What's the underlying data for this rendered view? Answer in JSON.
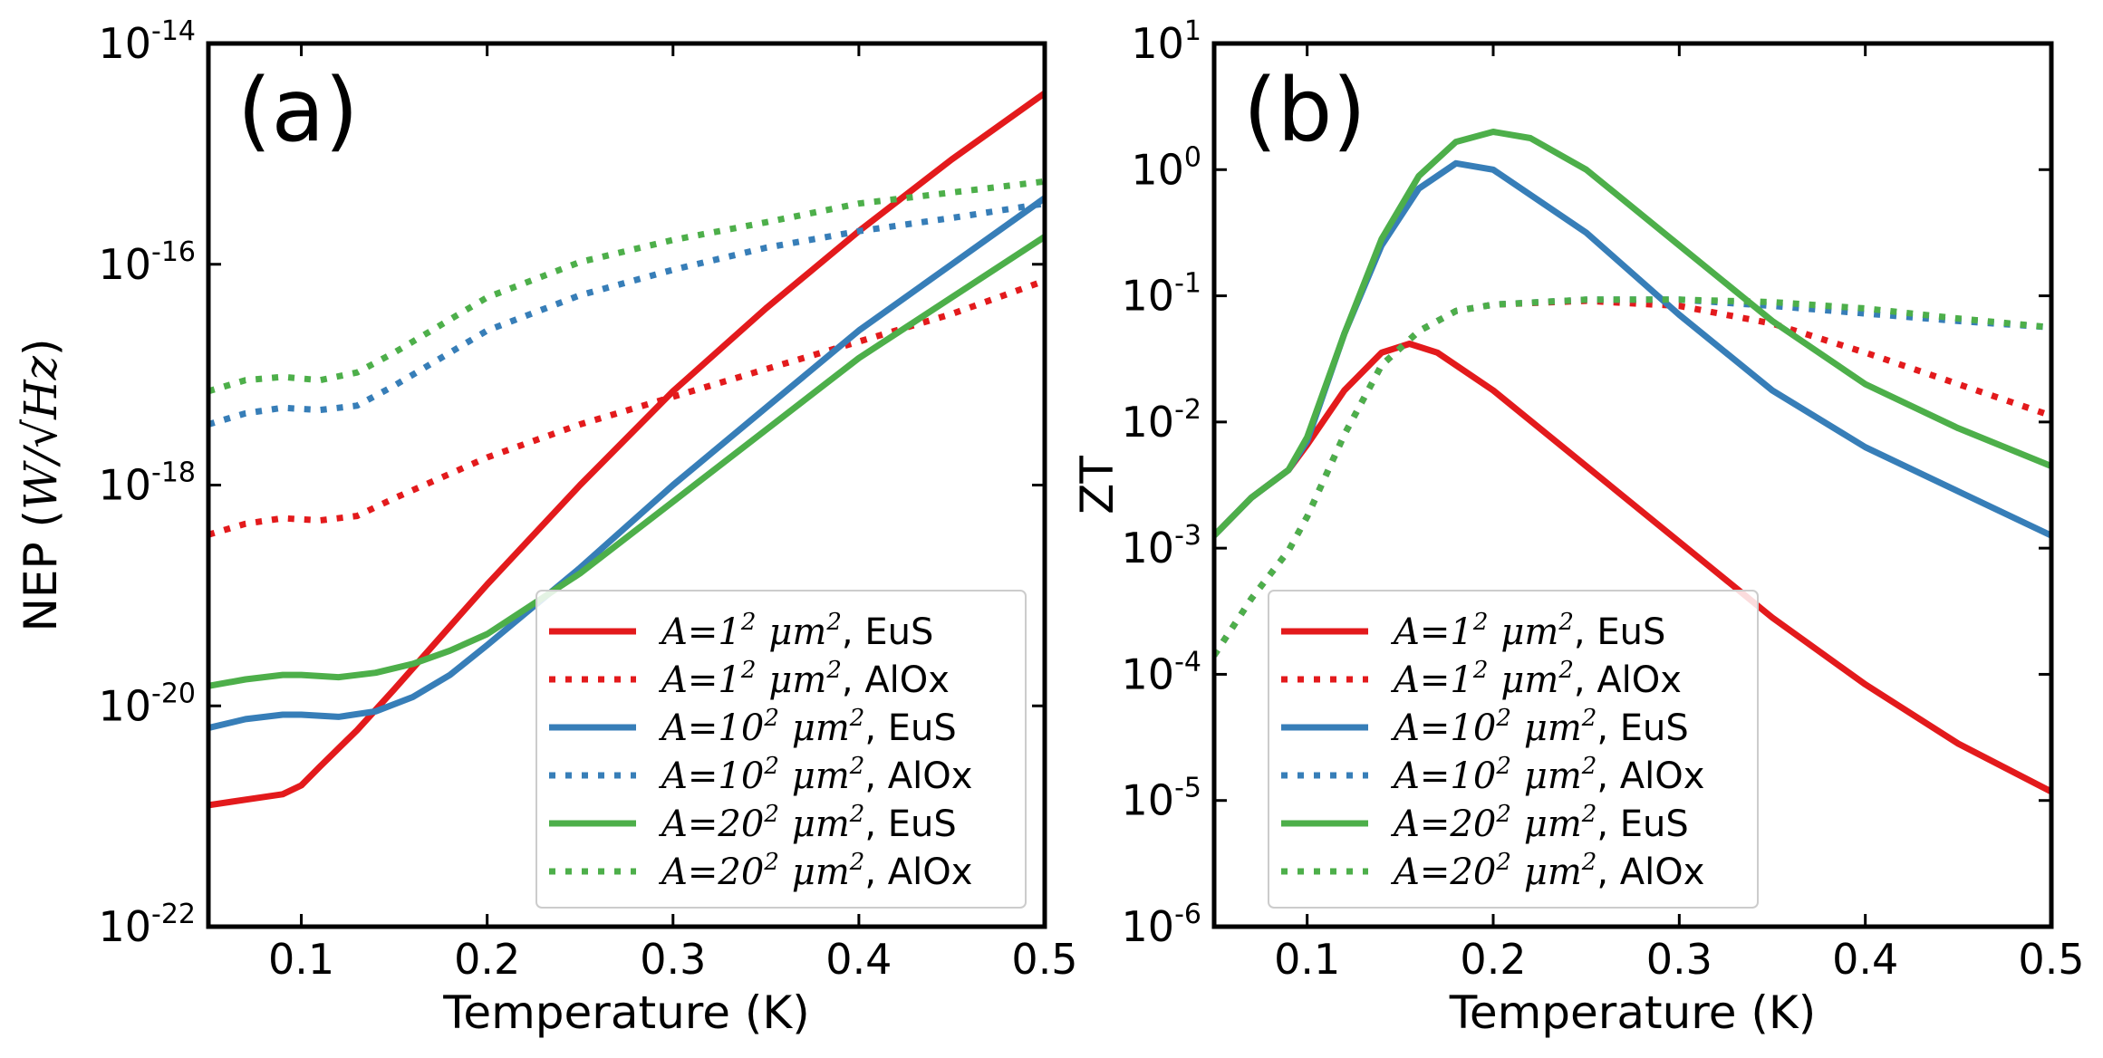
{
  "chart_data": [
    {
      "panel": "(a)",
      "type": "line",
      "xlabel": "Temperature (K)",
      "ylabel_text": "NEP (",
      "ylabel_math": "W/√Hz",
      "ylabel_close": ")",
      "yscale": "log",
      "xlim": [
        0.05,
        0.5
      ],
      "ylim_exp": [
        -22,
        -14
      ],
      "x_ticks": [
        "0.1",
        "0.2",
        "0.3",
        "0.4",
        "0.5"
      ],
      "y_tick_exps": [
        "-22",
        "-20",
        "-18",
        "-16",
        "-14"
      ],
      "y_tick_base": "10",
      "legend_location": "lower-right",
      "series": [
        {
          "name": "A=1² μm², EuS",
          "color": "#e31a1c",
          "style": "solid",
          "x": [
            0.05,
            0.07,
            0.09,
            0.1,
            0.11,
            0.13,
            0.15,
            0.18,
            0.2,
            0.25,
            0.3,
            0.35,
            0.4,
            0.45,
            0.5
          ],
          "log10y": [
            -20.9,
            -20.85,
            -20.8,
            -20.72,
            -20.55,
            -20.22,
            -19.85,
            -19.28,
            -18.9,
            -18.0,
            -17.15,
            -16.4,
            -15.7,
            -15.05,
            -14.45
          ]
        },
        {
          "name": "A=1² μm², AlOx",
          "color": "#e31a1c",
          "style": "dotted",
          "x": [
            0.05,
            0.07,
            0.09,
            0.11,
            0.13,
            0.15,
            0.2,
            0.25,
            0.3,
            0.35,
            0.4,
            0.45,
            0.5
          ],
          "log10y": [
            -18.45,
            -18.35,
            -18.3,
            -18.32,
            -18.28,
            -18.12,
            -17.75,
            -17.45,
            -17.2,
            -16.95,
            -16.7,
            -16.45,
            -16.15
          ]
        },
        {
          "name": "A=10² μm², EuS",
          "color": "#377eb8",
          "style": "solid",
          "x": [
            0.05,
            0.07,
            0.09,
            0.1,
            0.12,
            0.14,
            0.16,
            0.18,
            0.2,
            0.25,
            0.3,
            0.35,
            0.4,
            0.45,
            0.5
          ],
          "log10y": [
            -20.2,
            -20.12,
            -20.08,
            -20.08,
            -20.1,
            -20.05,
            -19.92,
            -19.72,
            -19.45,
            -18.75,
            -18.0,
            -17.3,
            -16.6,
            -16.0,
            -15.4
          ]
        },
        {
          "name": "A=10² μm², AlOx",
          "color": "#377eb8",
          "style": "dotted",
          "x": [
            0.05,
            0.07,
            0.09,
            0.11,
            0.13,
            0.15,
            0.2,
            0.25,
            0.3,
            0.35,
            0.4,
            0.45,
            0.5
          ],
          "log10y": [
            -17.45,
            -17.35,
            -17.3,
            -17.32,
            -17.28,
            -17.1,
            -16.6,
            -16.28,
            -16.05,
            -15.85,
            -15.7,
            -15.58,
            -15.45
          ]
        },
        {
          "name": "A=20² μm², EuS",
          "color": "#4daf4a",
          "style": "solid",
          "x": [
            0.05,
            0.07,
            0.09,
            0.1,
            0.12,
            0.14,
            0.16,
            0.18,
            0.2,
            0.25,
            0.3,
            0.35,
            0.4,
            0.45,
            0.5
          ],
          "log10y": [
            -19.82,
            -19.76,
            -19.72,
            -19.72,
            -19.74,
            -19.7,
            -19.62,
            -19.5,
            -19.35,
            -18.8,
            -18.15,
            -17.5,
            -16.85,
            -16.3,
            -15.75
          ]
        },
        {
          "name": "A=20² μm², AlOx",
          "color": "#4daf4a",
          "style": "dotted",
          "x": [
            0.05,
            0.07,
            0.09,
            0.11,
            0.13,
            0.15,
            0.2,
            0.25,
            0.3,
            0.35,
            0.4,
            0.45,
            0.5
          ],
          "log10y": [
            -17.15,
            -17.05,
            -17.02,
            -17.05,
            -16.98,
            -16.8,
            -16.3,
            -15.98,
            -15.78,
            -15.62,
            -15.45,
            -15.35,
            -15.25
          ]
        }
      ]
    },
    {
      "panel": "(b)",
      "type": "line",
      "xlabel": "Temperature (K)",
      "ylabel_text": "ZT",
      "yscale": "log",
      "xlim": [
        0.05,
        0.5
      ],
      "ylim_exp": [
        -6,
        1
      ],
      "x_ticks": [
        "0.1",
        "0.2",
        "0.3",
        "0.4",
        "0.5"
      ],
      "y_tick_exps": [
        "-6",
        "-5",
        "-4",
        "-3",
        "-2",
        "-1",
        "0",
        "1"
      ],
      "y_tick_base": "10",
      "legend_location": "lower-left",
      "series": [
        {
          "name": "A=1² μm², EuS",
          "color": "#e31a1c",
          "style": "solid",
          "x": [
            0.05,
            0.07,
            0.09,
            0.1,
            0.12,
            0.14,
            0.155,
            0.17,
            0.2,
            0.25,
            0.3,
            0.35,
            0.4,
            0.45,
            0.5
          ],
          "log10y": [
            -2.9,
            -2.6,
            -2.38,
            -2.18,
            -1.75,
            -1.45,
            -1.38,
            -1.45,
            -1.75,
            -2.35,
            -2.95,
            -3.55,
            -4.08,
            -4.55,
            -4.93
          ]
        },
        {
          "name": "A=1² μm², AlOx",
          "color": "#e31a1c",
          "style": "dotted",
          "x": [
            0.05,
            0.07,
            0.09,
            0.1,
            0.12,
            0.14,
            0.16,
            0.18,
            0.2,
            0.25,
            0.3,
            0.35,
            0.4,
            0.45,
            0.5
          ],
          "log10y": [
            -3.85,
            -3.4,
            -3.02,
            -2.75,
            -2.1,
            -1.55,
            -1.28,
            -1.12,
            -1.07,
            -1.04,
            -1.08,
            -1.22,
            -1.45,
            -1.7,
            -1.95
          ]
        },
        {
          "name": "A=10² μm², EuS",
          "color": "#377eb8",
          "style": "solid",
          "x": [
            0.05,
            0.07,
            0.09,
            0.1,
            0.12,
            0.14,
            0.16,
            0.18,
            0.2,
            0.25,
            0.3,
            0.35,
            0.4,
            0.45,
            0.5
          ],
          "log10y": [
            -2.9,
            -2.6,
            -2.38,
            -2.15,
            -1.3,
            -0.6,
            -0.15,
            0.05,
            0.0,
            -0.5,
            -1.15,
            -1.75,
            -2.2,
            -2.55,
            -2.9
          ]
        },
        {
          "name": "A=10² μm², AlOx",
          "color": "#377eb8",
          "style": "dotted",
          "x": [
            0.05,
            0.07,
            0.09,
            0.1,
            0.12,
            0.14,
            0.16,
            0.18,
            0.2,
            0.25,
            0.3,
            0.35,
            0.4,
            0.45,
            0.5
          ],
          "log10y": [
            -3.85,
            -3.4,
            -3.02,
            -2.75,
            -2.1,
            -1.55,
            -1.28,
            -1.12,
            -1.07,
            -1.03,
            -1.03,
            -1.08,
            -1.14,
            -1.2,
            -1.25
          ]
        },
        {
          "name": "A=20² μm², EuS",
          "color": "#4daf4a",
          "style": "solid",
          "x": [
            0.05,
            0.07,
            0.09,
            0.1,
            0.12,
            0.14,
            0.16,
            0.18,
            0.2,
            0.22,
            0.25,
            0.3,
            0.35,
            0.4,
            0.45,
            0.5
          ],
          "log10y": [
            -2.9,
            -2.6,
            -2.38,
            -2.12,
            -1.3,
            -0.55,
            -0.05,
            0.22,
            0.3,
            0.25,
            0.0,
            -0.6,
            -1.2,
            -1.7,
            -2.05,
            -2.35
          ]
        },
        {
          "name": "A=20² μm², AlOx",
          "color": "#4daf4a",
          "style": "dotted",
          "x": [
            0.05,
            0.07,
            0.09,
            0.1,
            0.12,
            0.14,
            0.16,
            0.18,
            0.2,
            0.25,
            0.3,
            0.35,
            0.4,
            0.45,
            0.5
          ],
          "log10y": [
            -3.85,
            -3.4,
            -3.02,
            -2.75,
            -2.1,
            -1.55,
            -1.28,
            -1.12,
            -1.07,
            -1.03,
            -1.03,
            -1.05,
            -1.1,
            -1.18,
            -1.25
          ]
        }
      ]
    }
  ],
  "legend": [
    {
      "math": "A=1",
      "sup": "2",
      "unit": "μm",
      "unit_sup": "2",
      "material": ", EuS"
    },
    {
      "math": "A=1",
      "sup": "2",
      "unit": "μm",
      "unit_sup": "2",
      "material": ", AlOx"
    },
    {
      "math": "A=10",
      "sup": "2",
      "unit": "μm",
      "unit_sup": "2",
      "material": ", EuS"
    },
    {
      "math": "A=10",
      "sup": "2",
      "unit": "μm",
      "unit_sup": "2",
      "material": ", AlOx"
    },
    {
      "math": "A=20",
      "sup": "2",
      "unit": "μm",
      "unit_sup": "2",
      "material": ", EuS"
    },
    {
      "math": "A=20",
      "sup": "2",
      "unit": "μm",
      "unit_sup": "2",
      "material": ", AlOx"
    }
  ]
}
